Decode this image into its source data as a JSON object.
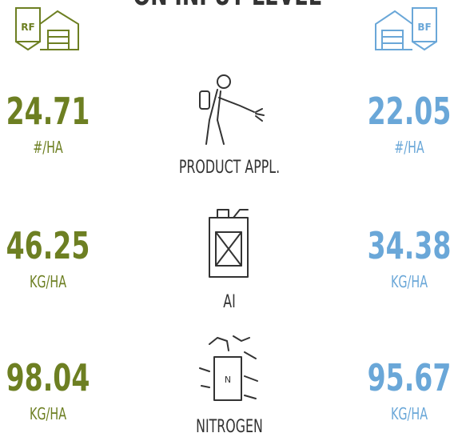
{
  "header": {
    "title": "ON INPUT LEVEL",
    "left_badge": "RF",
    "right_badge": "BF"
  },
  "rows": [
    {
      "label": "PRODUCT APPL.",
      "left": {
        "value": 24.71,
        "unit": "#/HA"
      },
      "right": {
        "value": 22.05,
        "unit": "#/HA"
      }
    },
    {
      "label": "AI",
      "left": {
        "value": 46.25,
        "unit": "KG/HA"
      },
      "right": {
        "value": 34.38,
        "unit": "KG/HA"
      }
    },
    {
      "label": "NITROGEN",
      "left": {
        "value": 98.04,
        "unit": "KG/HA"
      },
      "right": {
        "value": 95.67,
        "unit": "KG/HA"
      }
    }
  ]
}
